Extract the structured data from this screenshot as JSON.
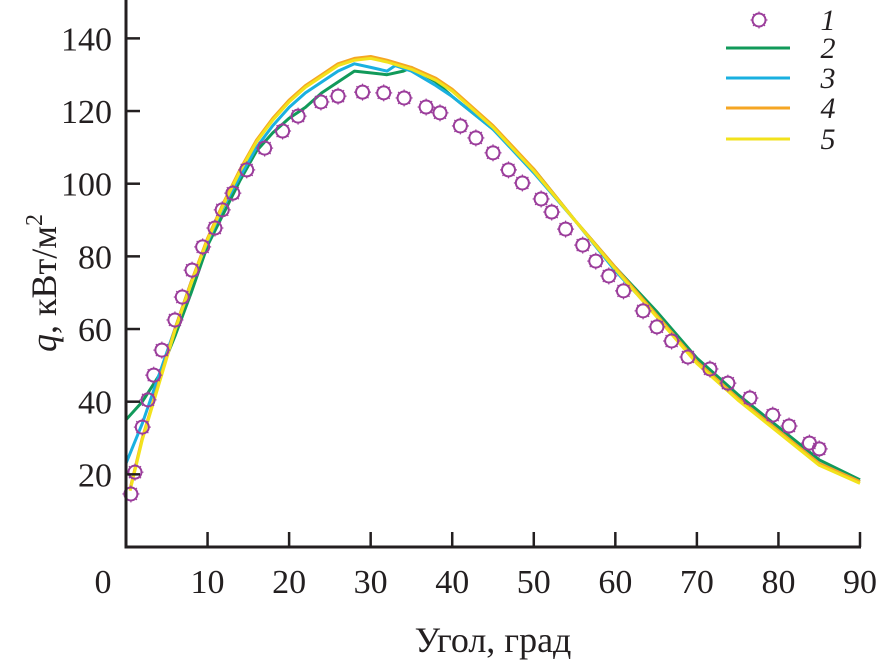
{
  "chart_data": {
    "type": "line",
    "xlabel": "Угол, град",
    "ylabel_var": "q",
    "ylabel_rest": ", кВт/м",
    "ylabel_sup": "2",
    "xlim": [
      0,
      90
    ],
    "ylim": [
      0,
      150
    ],
    "xticks": [
      0,
      10,
      20,
      30,
      40,
      50,
      60,
      70,
      80,
      90
    ],
    "yticks": [
      20,
      40,
      60,
      80,
      100,
      120,
      140
    ],
    "grid": false,
    "legend_position": "top-right",
    "series": [
      {
        "name": "1",
        "kind": "markers",
        "marker": "circle-open",
        "color": "#9b3d9b",
        "points": [
          [
            0.6,
            14.6
          ],
          [
            1.1,
            20.6
          ],
          [
            2.0,
            33
          ],
          [
            2.7,
            40.5
          ],
          [
            3.4,
            47.3
          ],
          [
            4.4,
            54.2
          ],
          [
            6.0,
            62.5
          ],
          [
            6.9,
            68.8
          ],
          [
            8.1,
            76.2
          ],
          [
            9.4,
            82.6
          ],
          [
            10.9,
            87.8
          ],
          [
            11.8,
            92.8
          ],
          [
            13.1,
            97.4
          ],
          [
            14.8,
            103.8
          ],
          [
            17.0,
            109.8
          ],
          [
            19.2,
            114.5
          ],
          [
            21.1,
            118.6
          ],
          [
            23.9,
            122.5
          ],
          [
            26.0,
            124.1
          ],
          [
            29.0,
            125.2
          ],
          [
            31.6,
            125
          ],
          [
            34.1,
            123.6
          ],
          [
            36.8,
            121.1
          ],
          [
            38.5,
            119.5
          ],
          [
            41.0,
            115.9
          ],
          [
            42.9,
            112.6
          ],
          [
            45.0,
            108.5
          ],
          [
            46.9,
            103.8
          ],
          [
            48.6,
            100.2
          ],
          [
            50.9,
            95.8
          ],
          [
            52.2,
            92.2
          ],
          [
            53.9,
            87.5
          ],
          [
            56.0,
            83.1
          ],
          [
            57.6,
            78.7
          ],
          [
            59.2,
            74.6
          ],
          [
            61.0,
            70.5
          ],
          [
            63.4,
            65
          ],
          [
            65.1,
            60.6
          ],
          [
            66.9,
            56.7
          ],
          [
            68.9,
            52.3
          ],
          [
            71.6,
            49
          ],
          [
            73.8,
            45.1
          ],
          [
            76.5,
            41
          ],
          [
            79.3,
            36.3
          ],
          [
            81.3,
            33.3
          ],
          [
            83.8,
            28.6
          ],
          [
            85.0,
            27
          ]
        ]
      },
      {
        "name": "2",
        "kind": "line",
        "color": "#119a5a",
        "points": [
          [
            0,
            35
          ],
          [
            2,
            40
          ],
          [
            4,
            47
          ],
          [
            6,
            58
          ],
          [
            8,
            70
          ],
          [
            10,
            83
          ],
          [
            12,
            92
          ],
          [
            14,
            101
          ],
          [
            16,
            109
          ],
          [
            18,
            114
          ],
          [
            20,
            118
          ],
          [
            22,
            121
          ],
          [
            24,
            125
          ],
          [
            26,
            128
          ],
          [
            28,
            131
          ],
          [
            30,
            130.5
          ],
          [
            32,
            130
          ],
          [
            34,
            131
          ],
          [
            35,
            132
          ],
          [
            38,
            128
          ],
          [
            40,
            124
          ],
          [
            45,
            115
          ],
          [
            50,
            104
          ],
          [
            55,
            90
          ],
          [
            60,
            77
          ],
          [
            65,
            65
          ],
          [
            70,
            52
          ],
          [
            75,
            42
          ],
          [
            80,
            33
          ],
          [
            85,
            24
          ],
          [
            90,
            18.5
          ]
        ]
      },
      {
        "name": "3",
        "kind": "line",
        "color": "#1ab0e0",
        "points": [
          [
            0,
            23
          ],
          [
            2,
            34
          ],
          [
            4,
            47
          ],
          [
            6,
            60
          ],
          [
            8,
            73
          ],
          [
            10,
            84
          ],
          [
            12,
            94
          ],
          [
            14,
            102
          ],
          [
            16,
            110
          ],
          [
            18,
            116
          ],
          [
            20,
            121
          ],
          [
            22,
            125
          ],
          [
            24,
            128
          ],
          [
            26,
            131
          ],
          [
            28,
            133
          ],
          [
            30,
            132
          ],
          [
            32,
            131
          ],
          [
            33,
            132.5
          ],
          [
            35,
            131
          ],
          [
            38,
            127
          ],
          [
            40,
            124
          ],
          [
            45,
            115
          ],
          [
            50,
            103
          ],
          [
            55,
            90
          ],
          [
            60,
            76
          ],
          [
            65,
            64
          ],
          [
            70,
            51
          ],
          [
            75,
            41
          ],
          [
            80,
            32
          ],
          [
            85,
            23
          ],
          [
            90,
            18
          ]
        ]
      },
      {
        "name": "4",
        "kind": "line",
        "color": "#f5a623",
        "points": [
          [
            0.5,
            16
          ],
          [
            2,
            30
          ],
          [
            4,
            45
          ],
          [
            6,
            60
          ],
          [
            8,
            73
          ],
          [
            10,
            85
          ],
          [
            12,
            95
          ],
          [
            14,
            104
          ],
          [
            16,
            112
          ],
          [
            18,
            118
          ],
          [
            20,
            123
          ],
          [
            22,
            127
          ],
          [
            24,
            130
          ],
          [
            26,
            133
          ],
          [
            28,
            134.5
          ],
          [
            30,
            135
          ],
          [
            32,
            134
          ],
          [
            35,
            132
          ],
          [
            38,
            129
          ],
          [
            40,
            126
          ],
          [
            45,
            116
          ],
          [
            50,
            104
          ],
          [
            55,
            90
          ],
          [
            60,
            77
          ],
          [
            65,
            64
          ],
          [
            70,
            51
          ],
          [
            75,
            41
          ],
          [
            80,
            32
          ],
          [
            85,
            23
          ],
          [
            90,
            18
          ]
        ]
      },
      {
        "name": "5",
        "kind": "line",
        "color": "#f2e21c",
        "points": [
          [
            0.5,
            15.5
          ],
          [
            2,
            29.5
          ],
          [
            4,
            44.5
          ],
          [
            6,
            59.5
          ],
          [
            8,
            72.5
          ],
          [
            10,
            84.5
          ],
          [
            12,
            94.5
          ],
          [
            14,
            103.5
          ],
          [
            16,
            111.5
          ],
          [
            18,
            117.5
          ],
          [
            20,
            122.5
          ],
          [
            22,
            126.5
          ],
          [
            24,
            129.5
          ],
          [
            26,
            132.5
          ],
          [
            28,
            134
          ],
          [
            30,
            134.5
          ],
          [
            32,
            133.5
          ],
          [
            35,
            131.5
          ],
          [
            38,
            128.5
          ],
          [
            40,
            125.5
          ],
          [
            45,
            115.5
          ],
          [
            50,
            103.5
          ],
          [
            55,
            90
          ],
          [
            60,
            76.5
          ],
          [
            65,
            63.5
          ],
          [
            70,
            50.5
          ],
          [
            75,
            40.5
          ],
          [
            80,
            31.5
          ],
          [
            85,
            22.5
          ],
          [
            90,
            17.5
          ]
        ]
      }
    ]
  }
}
